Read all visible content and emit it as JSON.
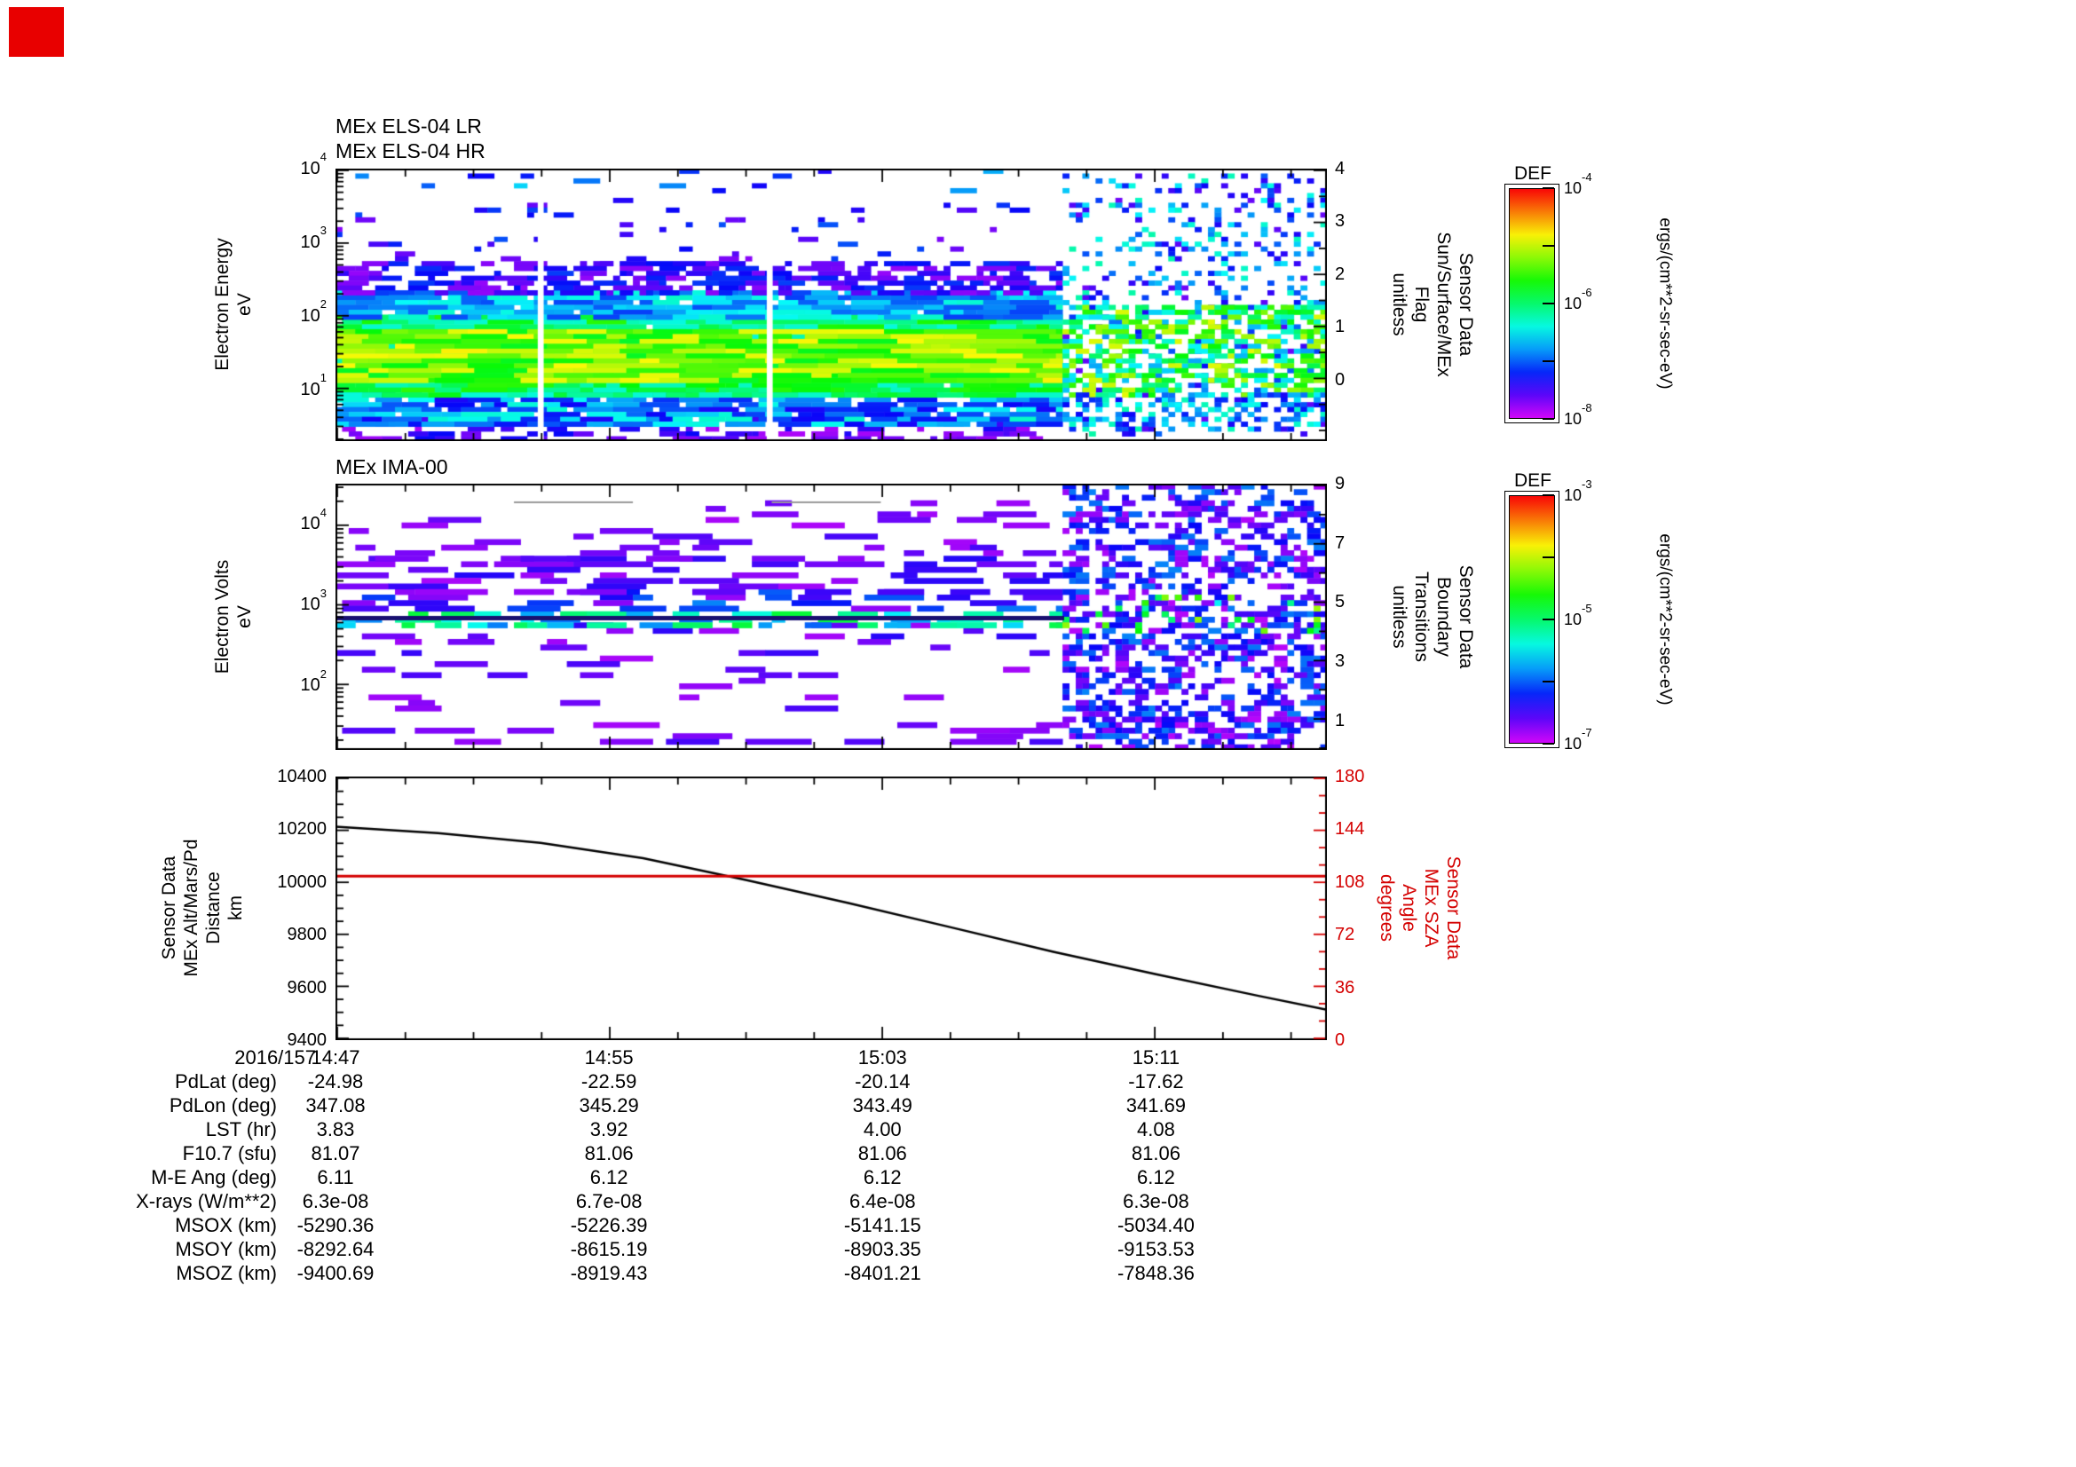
{
  "figure": {
    "panels": {
      "els": {
        "titles": [
          "MEx ELS-04 LR",
          "MEx ELS-04 HR"
        ],
        "ylabel_lines": [
          "Electron Energy",
          "eV"
        ],
        "right_label_lines": [
          "Sensor Data",
          "Sun/Surface/MEx",
          "Flag",
          "unitless"
        ],
        "yaxis": {
          "scale": "log",
          "lmin": 0.3,
          "lmax": 4,
          "major_exps": [
            4,
            3,
            2,
            1
          ]
        },
        "raxis": {
          "vmin": -1.17,
          "vmax": 4,
          "major_vals": [
            4,
            3,
            2,
            1,
            0
          ],
          "minor_step": 0.5
        }
      },
      "ima": {
        "title": "MEx IMA-00",
        "ylabel_lines": [
          "Electron Volts",
          "eV"
        ],
        "right_label_lines": [
          "Sensor Data",
          "Boundary",
          "Transitions",
          "unitless"
        ],
        "yaxis": {
          "scale": "log",
          "lmin": 1.2,
          "lmax": 4.5,
          "major_exps": [
            4,
            3,
            2
          ]
        },
        "raxis": {
          "vmin": 0,
          "vmax": 9,
          "major_vals": [
            9,
            7,
            5,
            3,
            1
          ],
          "minor_step": 1
        }
      },
      "alt": {
        "ylabel_lines": [
          "Sensor Data",
          "MEx Alt/Mars/Pd",
          "Distance",
          "km"
        ],
        "right_label_lines": [
          "Sensor Data",
          "MEx SZA",
          "Angle",
          "degrees"
        ],
        "yaxis": {
          "scale": "linear",
          "vmin": 9400,
          "vmax": 10400,
          "major_step": 200,
          "minor_step": 50
        },
        "raxis": {
          "vmin": 0,
          "vmax": 180,
          "major_step": 36,
          "minor_step": 12,
          "color": "#d40000"
        }
      }
    },
    "xaxis": {
      "date_label": "2016/157",
      "tick_labels": [
        "14:47",
        "14:55",
        "15:03",
        "15:11"
      ],
      "total_minutes": 29,
      "major_minutes": [
        0,
        8,
        16,
        24
      ],
      "minor_minutes": [
        2,
        4,
        6,
        10,
        12,
        14,
        18,
        20,
        22,
        26,
        28
      ]
    },
    "colorbars": [
      {
        "title": "DEF",
        "unit": "ergs/(cm**2-sr-sec-eV)",
        "tick_exps": [
          -4,
          -6,
          -8
        ]
      },
      {
        "title": "DEF",
        "unit": "ergs/(cm**2-sr-sec-eV)",
        "tick_exps": [
          -3,
          -5,
          -7
        ]
      }
    ],
    "table": {
      "rows": [
        {
          "label": "PdLat (deg)",
          "values": [
            "-24.98",
            "-22.59",
            "-20.14",
            "-17.62"
          ]
        },
        {
          "label": "PdLon (deg)",
          "values": [
            "347.08",
            "345.29",
            "343.49",
            "341.69"
          ]
        },
        {
          "label": "LST (hr)",
          "values": [
            "3.83",
            "3.92",
            "4.00",
            "4.08"
          ]
        },
        {
          "label": "F10.7 (sfu)",
          "values": [
            "81.07",
            "81.06",
            "81.06",
            "81.06"
          ]
        },
        {
          "label": "M-E Ang (deg)",
          "values": [
            "6.11",
            "6.12",
            "6.12",
            "6.12"
          ]
        },
        {
          "label": "X-rays (W/m**2)",
          "values": [
            "6.3e-08",
            "6.7e-08",
            "6.4e-08",
            "6.3e-08"
          ]
        },
        {
          "label": "MSOX (km)",
          "values": [
            "-5290.36",
            "-5226.39",
            "-5141.15",
            "-5034.40"
          ]
        },
        {
          "label": "MSOY (km)",
          "values": [
            "-8292.64",
            "-8615.19",
            "-8903.35",
            "-9153.53"
          ]
        },
        {
          "label": "MSOZ (km)",
          "values": [
            "-9400.69",
            "-8919.43",
            "-8401.21",
            "-7848.36"
          ]
        }
      ]
    }
  },
  "chart_data": [
    {
      "type": "heatmap",
      "panel": "els",
      "title": "MEx ELS-04 LR / MEx ELS-04 HR",
      "ylabel": "Electron Energy (eV)",
      "yscale": "log",
      "ylim": [
        2,
        10000
      ],
      "x_time_range": [
        "14:47",
        "15:16"
      ],
      "zlabel": "DEF ergs/(cm**2-sr-sec-eV)",
      "zlim": [
        1e-08,
        0.0001
      ],
      "description": "Electron spectrogram: bright green-yellow flux core 10-50 eV, cyan-green 5-100 eV, blue 100-250 eV, purple fringe 250-600 eV, sparse purple speckles up to 10^4 eV; after ~15:08 data become sparse random speckle noise.",
      "render": {
        "grid": {
          "cols": 150,
          "rows": 56
        },
        "seed": 1337,
        "regions": [
          {
            "x0": 0,
            "x1": 0.735,
            "white_cols": [
              0.207,
              0.438
            ],
            "bands": [
              {
                "y0": 0.0,
                "y1": 0.08,
                "density": 0.22,
                "vmin": 0.03,
                "vmax": 0.18,
                "run": [
                  1,
                  4
                ]
              },
              {
                "y0": 0.06,
                "y1": 0.17,
                "density": 0.75,
                "vmin": 0.15,
                "vmax": 0.42,
                "run": [
                  2,
                  6
                ]
              },
              {
                "y0": 0.17,
                "y1": 0.46,
                "density": 0.98,
                "vmin": 0.4,
                "vmax": 0.62,
                "run": [
                  2,
                  7
                ]
              },
              {
                "y0": 0.22,
                "y1": 0.4,
                "density": 0.95,
                "vmin": 0.55,
                "vmax": 0.8,
                "run": [
                  3,
                  9
                ]
              },
              {
                "y0": 0.46,
                "y1": 0.55,
                "density": 0.8,
                "vmin": 0.22,
                "vmax": 0.42,
                "run": [
                  2,
                  6
                ]
              },
              {
                "y0": 0.55,
                "y1": 0.66,
                "density": 0.38,
                "vmin": 0.05,
                "vmax": 0.22,
                "run": [
                  1,
                  5
                ]
              },
              {
                "y0": 0.66,
                "y1": 0.88,
                "density": 0.03,
                "vmin": 0.05,
                "vmax": 0.25,
                "run": [
                  1,
                  3
                ]
              },
              {
                "y0": 0.92,
                "y1": 1.0,
                "density": 0.02,
                "vmin": 0.15,
                "vmax": 0.35,
                "run": [
                  2,
                  4
                ]
              }
            ]
          },
          {
            "x0": 0.735,
            "x1": 1.0,
            "bands": [
              {
                "y0": 0.02,
                "y1": 0.98,
                "density": 0.2,
                "vmin": 0.08,
                "vmax": 0.45,
                "run": [
                  1,
                  1
                ]
              },
              {
                "y0": 0.17,
                "y1": 0.5,
                "density": 0.5,
                "vmin": 0.3,
                "vmax": 0.78,
                "run": [
                  1,
                  2
                ]
              },
              {
                "y0": 0.06,
                "y1": 0.17,
                "density": 0.3,
                "vmin": 0.15,
                "vmax": 0.45,
                "run": [
                  1,
                  1
                ]
              }
            ]
          }
        ]
      }
    },
    {
      "type": "heatmap",
      "panel": "ima",
      "title": "MEx IMA-00",
      "ylabel": "Electron Volts (eV)",
      "yscale": "log",
      "ylim": [
        16,
        31000
      ],
      "x_time_range": [
        "14:47",
        "15:16"
      ],
      "zlabel": "DEF ergs/(cm**2-sr-sec-eV)",
      "zlim": [
        1e-07,
        0.001
      ],
      "description": "Sparse ion spectrogram: dark continuous boundary line near 600 eV with cyan/green enhancements, scattered horizontal purple streaks between 10^2 and 10^4 eV, thin gray marker segments near top; dense purple speckle noise after ~15:08.",
      "render": {
        "grid": {
          "cols": 150,
          "rows": 48
        },
        "seed": 4242,
        "regions": [
          {
            "x0": 0,
            "x1": 0.735,
            "bands": [
              {
                "y0": 0.03,
                "y1": 0.1,
                "density": 0.045,
                "vmin": 0.03,
                "vmax": 0.12,
                "run": [
                  4,
                  10
                ]
              },
              {
                "y0": 0.16,
                "y1": 0.34,
                "density": 0.03,
                "vmin": 0.03,
                "vmax": 0.12,
                "run": [
                  3,
                  8
                ]
              },
              {
                "y0": 0.36,
                "y1": 0.47,
                "density": 0.045,
                "vmin": 0.03,
                "vmax": 0.15,
                "run": [
                  3,
                  8
                ]
              },
              {
                "y0": 0.46,
                "y1": 0.52,
                "density": 0.28,
                "vmin": 0.25,
                "vmax": 0.55,
                "run": [
                  2,
                  6
                ]
              },
              {
                "y0": 0.53,
                "y1": 0.6,
                "density": 0.12,
                "vmin": 0.05,
                "vmax": 0.28,
                "run": [
                  3,
                  9
                ]
              },
              {
                "y0": 0.6,
                "y1": 0.72,
                "density": 0.08,
                "vmin": 0.03,
                "vmax": 0.15,
                "run": [
                  4,
                  12
                ]
              },
              {
                "y0": 0.72,
                "y1": 0.8,
                "density": 0.05,
                "vmin": 0.03,
                "vmax": 0.12,
                "run": [
                  3,
                  9
                ]
              },
              {
                "y0": 0.82,
                "y1": 0.93,
                "density": 0.04,
                "vmin": 0.03,
                "vmax": 0.12,
                "run": [
                  3,
                  8
                ]
              }
            ]
          },
          {
            "x0": 0.735,
            "x1": 1.0,
            "bands": [
              {
                "y0": 0.02,
                "y1": 0.98,
                "density": 0.4,
                "vmin": 0.02,
                "vmax": 0.28,
                "run": [
                  1,
                  2
                ]
              },
              {
                "y0": 0.44,
                "y1": 0.58,
                "density": 0.12,
                "vmin": 0.35,
                "vmax": 0.72,
                "run": [
                  1,
                  1
                ]
              }
            ]
          }
        ],
        "solid_lines": [
          {
            "y": 0.495,
            "x0": 0,
            "x1": 0.735,
            "color": "#191070",
            "lw": 5
          },
          {
            "y": 0.93,
            "x0": 0.18,
            "x1": 0.3,
            "color": "#999999",
            "lw": 2
          },
          {
            "y": 0.93,
            "x0": 0.44,
            "x1": 0.55,
            "color": "#999999",
            "lw": 2
          }
        ]
      }
    },
    {
      "type": "line",
      "panel": "alt",
      "ylabel": "Sensor Data MEx Alt/Mars/Pd Distance (km)",
      "y2label": "Sensor Data MEx SZA Angle (degrees)",
      "ylim": [
        9400,
        10400
      ],
      "y2lim": [
        0,
        180
      ],
      "x_start": "14:47",
      "total_minutes": 29,
      "series": [
        {
          "name": "MEx Alt/Mars/Pd Distance",
          "color": "#000000",
          "axis": "left",
          "x_minutes": [
            0,
            3,
            6,
            9,
            12,
            15,
            18,
            21,
            24,
            27,
            29
          ],
          "y": [
            10210,
            10185,
            10148,
            10090,
            10008,
            9920,
            9828,
            9735,
            9650,
            9568,
            9515
          ]
        },
        {
          "name": "MEx SZA Angle",
          "color": "#d40000",
          "axis": "right",
          "x_minutes": [
            0,
            29
          ],
          "y": [
            112,
            112
          ]
        }
      ]
    }
  ]
}
